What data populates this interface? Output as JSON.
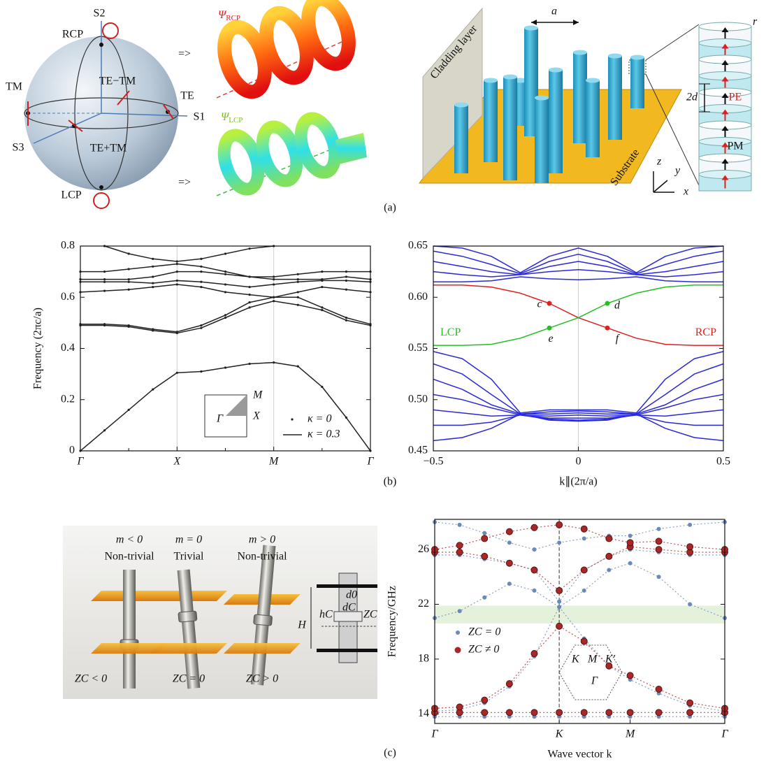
{
  "figure_a": {
    "caption": "(a)",
    "sphere": {
      "s2": "S2",
      "rcp": "RCP",
      "tm": "TM",
      "te_minus_tm": "TE−TM",
      "te": "TE",
      "s1": "S1",
      "s3": "S3",
      "te_plus_tm": "TE+TM",
      "lcp": "LCP"
    },
    "arrows": [
      "=>",
      "=>"
    ],
    "psi_rcp": {
      "symbol": "Ψ",
      "sub": "RCP"
    },
    "psi_lcp": {
      "symbol": "Ψ",
      "sub": "LCP"
    },
    "lattice": {
      "cladding": "Cladding layer",
      "a": "a",
      "r": "r",
      "two_d": "2d",
      "pe": "PE",
      "pm": "PM",
      "substrate": "Substrate",
      "z": "z",
      "y": "y",
      "x": "x"
    }
  },
  "chart_data": [
    {
      "type": "line",
      "caption": "(b)",
      "y_label": "Frequency (2πc/a)",
      "x": [
        0,
        0.25,
        0.5,
        0.75,
        1,
        1.25,
        1.5,
        1.75,
        2,
        2.25,
        2.5,
        2.75,
        3
      ],
      "xlim": [
        0,
        3
      ],
      "ylim": [
        0,
        0.8
      ],
      "xticks": [
        {
          "value": 0,
          "label": "Γ"
        },
        {
          "value": 1,
          "label": "X"
        },
        {
          "value": 2,
          "label": "M"
        },
        {
          "value": 3,
          "label": "Γ"
        }
      ],
      "minor_xticks": [
        0.5,
        1.5,
        2.5
      ],
      "yticks": [
        0,
        0.2,
        0.4,
        0.6,
        0.8
      ],
      "vlines": [
        1,
        2
      ],
      "dots": true,
      "series": [
        {
          "color": "#222222",
          "values": [
            0,
            0.08,
            0.16,
            0.24,
            0.305,
            0.31,
            0.325,
            0.34,
            0.345,
            0.33,
            0.25,
            0.13,
            0
          ]
        },
        {
          "color": "#222222",
          "values": [
            0.49,
            0.49,
            0.485,
            0.47,
            0.46,
            0.48,
            0.52,
            0.56,
            0.585,
            0.57,
            0.55,
            0.51,
            0.49
          ]
        },
        {
          "color": "#222222",
          "values": [
            0.495,
            0.495,
            0.49,
            0.475,
            0.465,
            0.49,
            0.53,
            0.58,
            0.6,
            0.6,
            0.56,
            0.52,
            0.495
          ]
        },
        {
          "color": "#222222",
          "values": [
            0.62,
            0.625,
            0.63,
            0.64,
            0.65,
            0.64,
            0.62,
            0.61,
            0.6,
            0.62,
            0.64,
            0.63,
            0.62
          ]
        },
        {
          "color": "#222222",
          "values": [
            0.66,
            0.66,
            0.66,
            0.655,
            0.665,
            0.66,
            0.65,
            0.64,
            0.65,
            0.66,
            0.665,
            0.665,
            0.66
          ]
        },
        {
          "color": "#222222",
          "values": [
            0.67,
            0.67,
            0.67,
            0.68,
            0.7,
            0.7,
            0.69,
            0.68,
            0.67,
            0.67,
            0.67,
            0.68,
            0.67
          ]
        },
        {
          "color": "#222222",
          "values": [
            0.7,
            0.7,
            0.71,
            0.72,
            0.73,
            0.72,
            0.7,
            0.68,
            0.68,
            0.69,
            0.7,
            0.7,
            0.7
          ]
        },
        {
          "color": "#222222",
          "values": [
            null,
            0.8,
            0.77,
            0.75,
            0.74,
            0.75,
            0.77,
            0.79,
            0.8,
            null,
            null,
            null,
            null
          ]
        }
      ],
      "legend": [
        {
          "label": "κ = 0",
          "marker": "dot"
        },
        {
          "label": "κ = 0.3",
          "marker": "line"
        }
      ],
      "inset": {
        "labels": [
          "M",
          "X",
          "Γ"
        ]
      }
    },
    {
      "type": "line",
      "x_label": "k∥(2π/a)",
      "x": [
        -0.5,
        -0.4,
        -0.3,
        -0.2,
        -0.1,
        0,
        0.1,
        0.2,
        0.3,
        0.4,
        0.5
      ],
      "xlim": [
        -0.5,
        0.5
      ],
      "ylim": [
        0.45,
        0.65
      ],
      "xticks": [
        {
          "value": -0.5,
          "label": "−0.5"
        },
        0,
        0.5
      ],
      "yticks": [
        0.45,
        {
          "value": 0.5,
          "label": "0.50"
        },
        0.55,
        {
          "value": 0.6,
          "label": "0.60"
        },
        0.65
      ],
      "vlines": [
        0
      ],
      "series": [
        {
          "color": "#2a2ad8",
          "values": [
            0.615,
            0.615,
            0.616,
            0.62,
            0.618,
            0.617,
            0.618,
            0.62,
            0.616,
            0.615,
            0.615
          ]
        },
        {
          "color": "#2a2ad8",
          "values": [
            0.625,
            0.622,
            0.62,
            0.622,
            0.625,
            0.627,
            0.625,
            0.622,
            0.62,
            0.622,
            0.625
          ]
        },
        {
          "color": "#2a2ad8",
          "values": [
            0.635,
            0.63,
            0.625,
            0.622,
            0.63,
            0.635,
            0.63,
            0.622,
            0.625,
            0.63,
            0.635
          ]
        },
        {
          "color": "#2a2ad8",
          "values": [
            0.645,
            0.64,
            0.632,
            0.623,
            0.635,
            0.642,
            0.635,
            0.623,
            0.632,
            0.64,
            0.645
          ]
        },
        {
          "color": "#2a2ad8",
          "values": [
            0.65,
            0.648,
            0.64,
            0.624,
            0.64,
            0.648,
            0.64,
            0.624,
            0.64,
            0.648,
            0.65
          ]
        },
        {
          "color": "#2a2ad8",
          "values": [
            0.547,
            0.54,
            0.52,
            0.487,
            0.49,
            0.49,
            0.49,
            0.487,
            0.52,
            0.54,
            0.547
          ]
        },
        {
          "color": "#2a2ad8",
          "values": [
            0.535,
            0.525,
            0.505,
            0.486,
            0.488,
            0.489,
            0.488,
            0.486,
            0.505,
            0.525,
            0.535
          ]
        },
        {
          "color": "#2a2ad8",
          "values": [
            0.52,
            0.51,
            0.495,
            0.486,
            0.486,
            0.487,
            0.486,
            0.486,
            0.495,
            0.51,
            0.52
          ]
        },
        {
          "color": "#2a2ad8",
          "values": [
            0.505,
            0.5,
            0.492,
            0.485,
            0.484,
            0.485,
            0.484,
            0.485,
            0.492,
            0.5,
            0.505
          ]
        },
        {
          "color": "#2a2ad8",
          "values": [
            0.49,
            0.487,
            0.484,
            0.485,
            0.482,
            0.482,
            0.482,
            0.485,
            0.484,
            0.487,
            0.49
          ]
        },
        {
          "color": "#2a2ad8",
          "values": [
            0.475,
            0.475,
            0.478,
            0.485,
            0.481,
            0.48,
            0.481,
            0.485,
            0.478,
            0.475,
            0.475
          ]
        },
        {
          "color": "#2a2ad8",
          "values": [
            0.46,
            0.463,
            0.472,
            0.486,
            0.48,
            0.479,
            0.48,
            0.486,
            0.472,
            0.463,
            0.46
          ]
        },
        {
          "name": "RCP",
          "color": "#e02020",
          "values": [
            0.612,
            0.612,
            0.61,
            0.604,
            0.594,
            0.58,
            0.57,
            0.56,
            0.554,
            0.553,
            0.553
          ]
        },
        {
          "name": "LCP",
          "color": "#22c022",
          "values": [
            0.553,
            0.553,
            0.554,
            0.56,
            0.57,
            0.58,
            0.594,
            0.604,
            0.61,
            0.612,
            0.612
          ]
        }
      ],
      "points": [
        {
          "label": "c",
          "x": -0.1,
          "y": 0.594,
          "color": "#e02020"
        },
        {
          "label": "d",
          "x": 0.1,
          "y": 0.594,
          "color": "#22c022"
        },
        {
          "label": "e",
          "x": -0.1,
          "y": 0.57,
          "color": "#22c022"
        },
        {
          "label": "f",
          "x": 0.1,
          "y": 0.57,
          "color": "#e02020"
        }
      ]
    },
    {
      "type": "scatter",
      "caption": "(c)",
      "x_label": "Wave vector k",
      "y_label": "Frequency/GHz",
      "x": [
        0,
        0.2,
        0.4,
        0.6,
        0.8,
        1,
        1.2,
        1.4,
        1.57,
        1.8,
        2.05,
        2.33
      ],
      "xlim": [
        0,
        2.33
      ],
      "ylim": [
        13.3,
        28.2
      ],
      "xticks": [
        {
          "value": 0,
          "label": "Γ"
        },
        {
          "value": 1,
          "label": "K"
        },
        {
          "value": 1.57,
          "label": "M"
        },
        {
          "value": 2.33,
          "label": "Γ"
        }
      ],
      "yticks": [
        14,
        18,
        22,
        26
      ],
      "vlines": [
        1
      ],
      "vline_dash": true,
      "shaded_range": [
        20.6,
        21.9
      ],
      "series": [
        {
          "name": "ZC = 0",
          "color": "#6a8ab8",
          "bands": [
            [
              13.8,
              13.8,
              13.8,
              13.8,
              13.8,
              13.8,
              13.8,
              13.8,
              13.8,
              13.8,
              13.8,
              13.8
            ],
            [
              14.2,
              14.3,
              14.8,
              16,
              18.2,
              21.8,
              19.5,
              17.5,
              16.5,
              15.5,
              14.6,
              14.2
            ],
            [
              21,
              21.5,
              22.5,
              23.5,
              23,
              21.8,
              23,
              24.5,
              25,
              24,
              22,
              21
            ],
            [
              25.6,
              25.6,
              25.3,
              25,
              24.5,
              22.2,
              24.5,
              25.5,
              26,
              25.8,
              25.6,
              25.6
            ],
            [
              28,
              27.8,
              27.2,
              26.5,
              26,
              26.5,
              26.8,
              27,
              27,
              27.5,
              27.8,
              28
            ]
          ]
        },
        {
          "name": "ZC ≠ 0",
          "color": "#a82828",
          "bands": [
            [
              14.1,
              14.1,
              14.1,
              14.1,
              14.1,
              14.1,
              14.1,
              14.1,
              14.1,
              14.1,
              14.1,
              14.1
            ],
            [
              14.4,
              14.5,
              15,
              16.2,
              18.4,
              20.4,
              19.3,
              17.5,
              16.8,
              15.8,
              14.8,
              14.4
            ],
            [
              25.8,
              25.8,
              25.5,
              25,
              24.5,
              23,
              24.5,
              25.5,
              26.2,
              26,
              25.8,
              25.8
            ],
            [
              26,
              26.3,
              26.8,
              27.3,
              27.6,
              27.8,
              27.5,
              26.8,
              26.5,
              26.6,
              26.2,
              26
            ]
          ]
        }
      ],
      "inset": {
        "labels": [
          "K",
          "M",
          "K′",
          "Γ"
        ]
      }
    }
  ],
  "figure_c": {
    "columns": [
      {
        "m": "m < 0",
        "phase": "Non-trivial",
        "zc": "ZC < 0"
      },
      {
        "m": "m = 0",
        "phase": "Trivial",
        "zc": "ZC = 0"
      },
      {
        "m": "m > 0",
        "phase": "Non-trivial",
        "zc": "ZC > 0"
      }
    ],
    "schematic": {
      "h": "H",
      "d0": "d0",
      "hc": "hC",
      "dc": "dC",
      "zc": "ZC"
    }
  }
}
